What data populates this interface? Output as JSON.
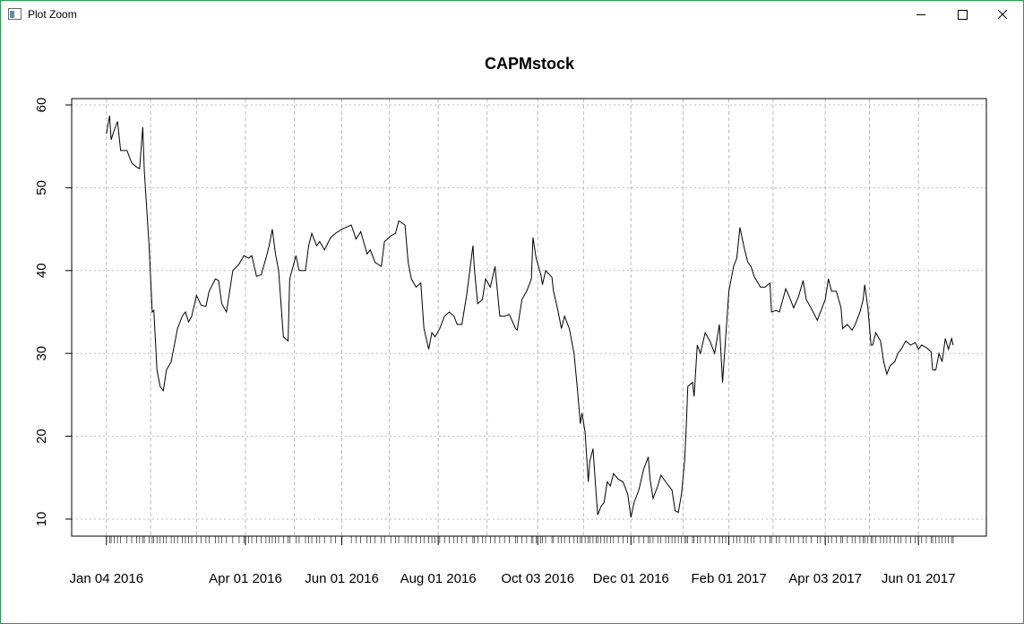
{
  "window": {
    "title": "Plot Zoom"
  },
  "chart_data": {
    "type": "line",
    "title": "CAPMstock",
    "color": "#000000",
    "grid": true,
    "x": [
      "2016-01-04",
      "2016-01-06",
      "2016-01-07",
      "2016-01-09",
      "2016-01-11",
      "2016-01-13",
      "2016-01-17",
      "2016-01-20",
      "2016-01-23",
      "2016-01-25",
      "2016-01-27",
      "2016-01-28",
      "2016-01-31",
      "2016-02-02",
      "2016-02-03",
      "2016-02-05",
      "2016-02-07",
      "2016-02-09",
      "2016-02-11",
      "2016-02-14",
      "2016-02-16",
      "2016-02-18",
      "2016-02-21",
      "2016-02-23",
      "2016-02-25",
      "2016-02-27",
      "2016-03-01",
      "2016-03-04",
      "2016-03-07",
      "2016-03-09",
      "2016-03-13",
      "2016-03-15",
      "2016-03-17",
      "2016-03-20",
      "2016-03-24",
      "2016-03-28",
      "2016-03-31",
      "2016-04-03",
      "2016-04-05",
      "2016-04-08",
      "2016-04-11",
      "2016-04-14",
      "2016-04-16",
      "2016-04-18",
      "2016-04-20",
      "2016-04-22",
      "2016-04-25",
      "2016-04-28",
      "2016-04-29",
      "2016-05-03",
      "2016-05-05",
      "2016-05-09",
      "2016-05-11",
      "2016-05-13",
      "2016-05-16",
      "2016-05-18",
      "2016-05-21",
      "2016-05-25",
      "2016-05-28",
      "2016-06-01",
      "2016-06-07",
      "2016-06-10",
      "2016-06-13",
      "2016-06-17",
      "2016-06-19",
      "2016-06-22",
      "2016-06-26",
      "2016-06-28",
      "2016-07-02",
      "2016-07-05",
      "2016-07-07",
      "2016-07-11",
      "2016-07-13",
      "2016-07-15",
      "2016-07-18",
      "2016-07-21",
      "2016-07-23",
      "2016-07-26",
      "2016-07-28",
      "2016-07-30",
      "2016-08-02",
      "2016-08-05",
      "2016-08-08",
      "2016-08-11",
      "2016-08-13",
      "2016-08-16",
      "2016-08-19",
      "2016-08-23",
      "2016-08-24",
      "2016-08-26",
      "2016-08-29",
      "2016-08-31",
      "2016-09-03",
      "2016-09-06",
      "2016-09-09",
      "2016-09-12",
      "2016-09-15",
      "2016-09-19",
      "2016-09-20",
      "2016-09-23",
      "2016-09-26",
      "2016-09-29",
      "2016-09-30",
      "2016-10-02",
      "2016-10-05",
      "2016-10-06",
      "2016-10-08",
      "2016-10-12",
      "2016-10-13",
      "2016-10-16",
      "2016-10-18",
      "2016-10-20",
      "2016-10-23",
      "2016-10-26",
      "2016-10-28",
      "2016-10-30",
      "2016-10-31",
      "2016-11-02",
      "2016-11-04",
      "2016-11-05",
      "2016-11-07",
      "2016-11-09",
      "2016-11-10",
      "2016-11-12",
      "2016-11-14",
      "2016-11-16",
      "2016-11-18",
      "2016-11-20",
      "2016-11-23",
      "2016-11-26",
      "2016-11-29",
      "2016-12-01",
      "2016-12-03",
      "2016-12-06",
      "2016-12-09",
      "2016-12-12",
      "2016-12-13",
      "2016-12-15",
      "2016-12-18",
      "2016-12-20",
      "2016-12-23",
      "2016-12-25",
      "2016-12-27",
      "2016-12-29",
      "2016-12-31",
      "2017-01-02",
      "2017-01-04",
      "2017-01-05",
      "2017-01-06",
      "2017-01-09",
      "2017-01-10",
      "2017-01-12",
      "2017-01-14",
      "2017-01-17",
      "2017-01-20",
      "2017-01-23",
      "2017-01-26",
      "2017-01-28",
      "2017-01-30",
      "2017-02-01",
      "2017-02-04",
      "2017-02-06",
      "2017-02-08",
      "2017-02-11",
      "2017-02-13",
      "2017-02-15",
      "2017-02-17",
      "2017-02-21",
      "2017-02-24",
      "2017-02-27",
      "2017-02-28",
      "2017-03-03",
      "2017-03-05",
      "2017-03-09",
      "2017-03-12",
      "2017-03-14",
      "2017-03-17",
      "2017-03-20",
      "2017-03-22",
      "2017-03-25",
      "2017-03-29",
      "2017-03-31",
      "2017-04-03",
      "2017-04-05",
      "2017-04-07",
      "2017-04-10",
      "2017-04-13",
      "2017-04-14",
      "2017-04-17",
      "2017-04-20",
      "2017-04-22",
      "2017-04-25",
      "2017-04-27",
      "2017-04-28",
      "2017-04-30",
      "2017-05-02",
      "2017-05-03",
      "2017-05-05",
      "2017-05-08",
      "2017-05-10",
      "2017-05-12",
      "2017-05-14",
      "2017-05-17",
      "2017-05-19",
      "2017-05-21",
      "2017-05-24",
      "2017-05-27",
      "2017-05-30",
      "2017-06-01",
      "2017-06-03",
      "2017-06-06",
      "2017-06-09",
      "2017-06-10",
      "2017-06-12",
      "2017-06-14",
      "2017-06-16",
      "2017-06-18",
      "2017-06-20",
      "2017-06-22",
      "2017-06-23"
    ],
    "values": [
      56.5,
      58.7,
      55.8,
      57,
      58,
      54.5,
      54.5,
      53,
      52.5,
      52.3,
      57.3,
      52,
      43,
      35,
      35.2,
      28,
      26,
      25.5,
      28,
      29,
      31,
      33,
      34.5,
      35,
      33.8,
      34.5,
      37,
      35.8,
      35.7,
      37.5,
      39,
      38.8,
      36,
      35,
      40,
      40.8,
      41.8,
      41.5,
      41.8,
      39.3,
      39.5,
      41.5,
      43,
      45,
      42,
      40,
      32,
      31.5,
      39,
      41.8,
      40,
      40,
      43,
      44.5,
      43,
      43.5,
      42.5,
      44,
      44.5,
      45,
      45.5,
      43.8,
      44.7,
      42,
      42.5,
      41,
      40.5,
      43.5,
      44.2,
      44.5,
      46,
      45.5,
      41,
      39,
      38,
      38.5,
      33,
      30.5,
      32.5,
      32,
      33,
      34.5,
      35,
      34.5,
      33.5,
      33.5,
      37,
      43,
      40,
      36,
      36.5,
      39,
      38,
      40.5,
      34.5,
      34.5,
      34.7,
      33,
      32.8,
      36.5,
      37.5,
      39,
      44,
      41.5,
      39.5,
      38.3,
      40,
      39.2,
      37.5,
      35,
      33,
      34.5,
      33,
      30,
      26,
      21.5,
      22.8,
      20.5,
      14.5,
      17,
      18.5,
      13,
      10.5,
      11.5,
      12,
      14.5,
      14,
      15.5,
      14.8,
      14.5,
      13,
      10.2,
      12,
      13.5,
      16,
      17.5,
      15,
      12.5,
      14,
      15.3,
      14.5,
      14,
      13.5,
      11,
      10.8,
      13,
      17,
      21,
      26,
      26.5,
      24.8,
      31,
      30,
      32.5,
      31.5,
      30,
      33.5,
      26.5,
      32,
      37.5,
      40.5,
      41.5,
      45.2,
      42.5,
      41,
      40.5,
      39.3,
      38,
      38,
      38.5,
      35,
      35.2,
      35,
      37.8,
      36.5,
      35.5,
      36.8,
      38.8,
      36.5,
      35.5,
      34,
      35,
      36.5,
      39,
      37.5,
      37.5,
      35.5,
      33,
      33.5,
      32.8,
      33.5,
      35,
      36.5,
      38.3,
      35.5,
      31,
      31,
      32.5,
      31.5,
      29,
      27.5,
      28.5,
      29,
      30,
      30.5,
      31.5,
      31,
      31.3,
      30.5,
      31,
      30.7,
      30.2,
      28,
      28,
      30,
      29,
      31.8,
      30.5,
      31.8,
      31
    ],
    "xlim": [
      "2015-12-13",
      "2017-07-14"
    ],
    "xticks": [
      {
        "value": "2016-01-04",
        "label": "Jan 04 2016"
      },
      {
        "value": "2016-02-01",
        "label": null
      },
      {
        "value": "2016-03-01",
        "label": null
      },
      {
        "value": "2016-04-01",
        "label": "Apr 01 2016"
      },
      {
        "value": "2016-05-02",
        "label": null
      },
      {
        "value": "2016-06-01",
        "label": "Jun 01 2016"
      },
      {
        "value": "2016-07-01",
        "label": null
      },
      {
        "value": "2016-08-01",
        "label": "Aug 01 2016"
      },
      {
        "value": "2016-09-01",
        "label": null
      },
      {
        "value": "2016-10-03",
        "label": "Oct 03 2016"
      },
      {
        "value": "2016-11-01",
        "label": null
      },
      {
        "value": "2016-12-01",
        "label": "Dec 01 2016"
      },
      {
        "value": "2017-01-03",
        "label": null
      },
      {
        "value": "2017-02-01",
        "label": "Feb 01 2017"
      },
      {
        "value": "2017-03-01",
        "label": null
      },
      {
        "value": "2017-04-03",
        "label": "Apr 03 2017"
      },
      {
        "value": "2017-05-01",
        "label": null
      },
      {
        "value": "2017-06-01",
        "label": "Jun 01 2017"
      }
    ],
    "ylim": [
      7.94,
      60.76
    ],
    "yticks": [
      10,
      20,
      30,
      40,
      50,
      60
    ]
  }
}
